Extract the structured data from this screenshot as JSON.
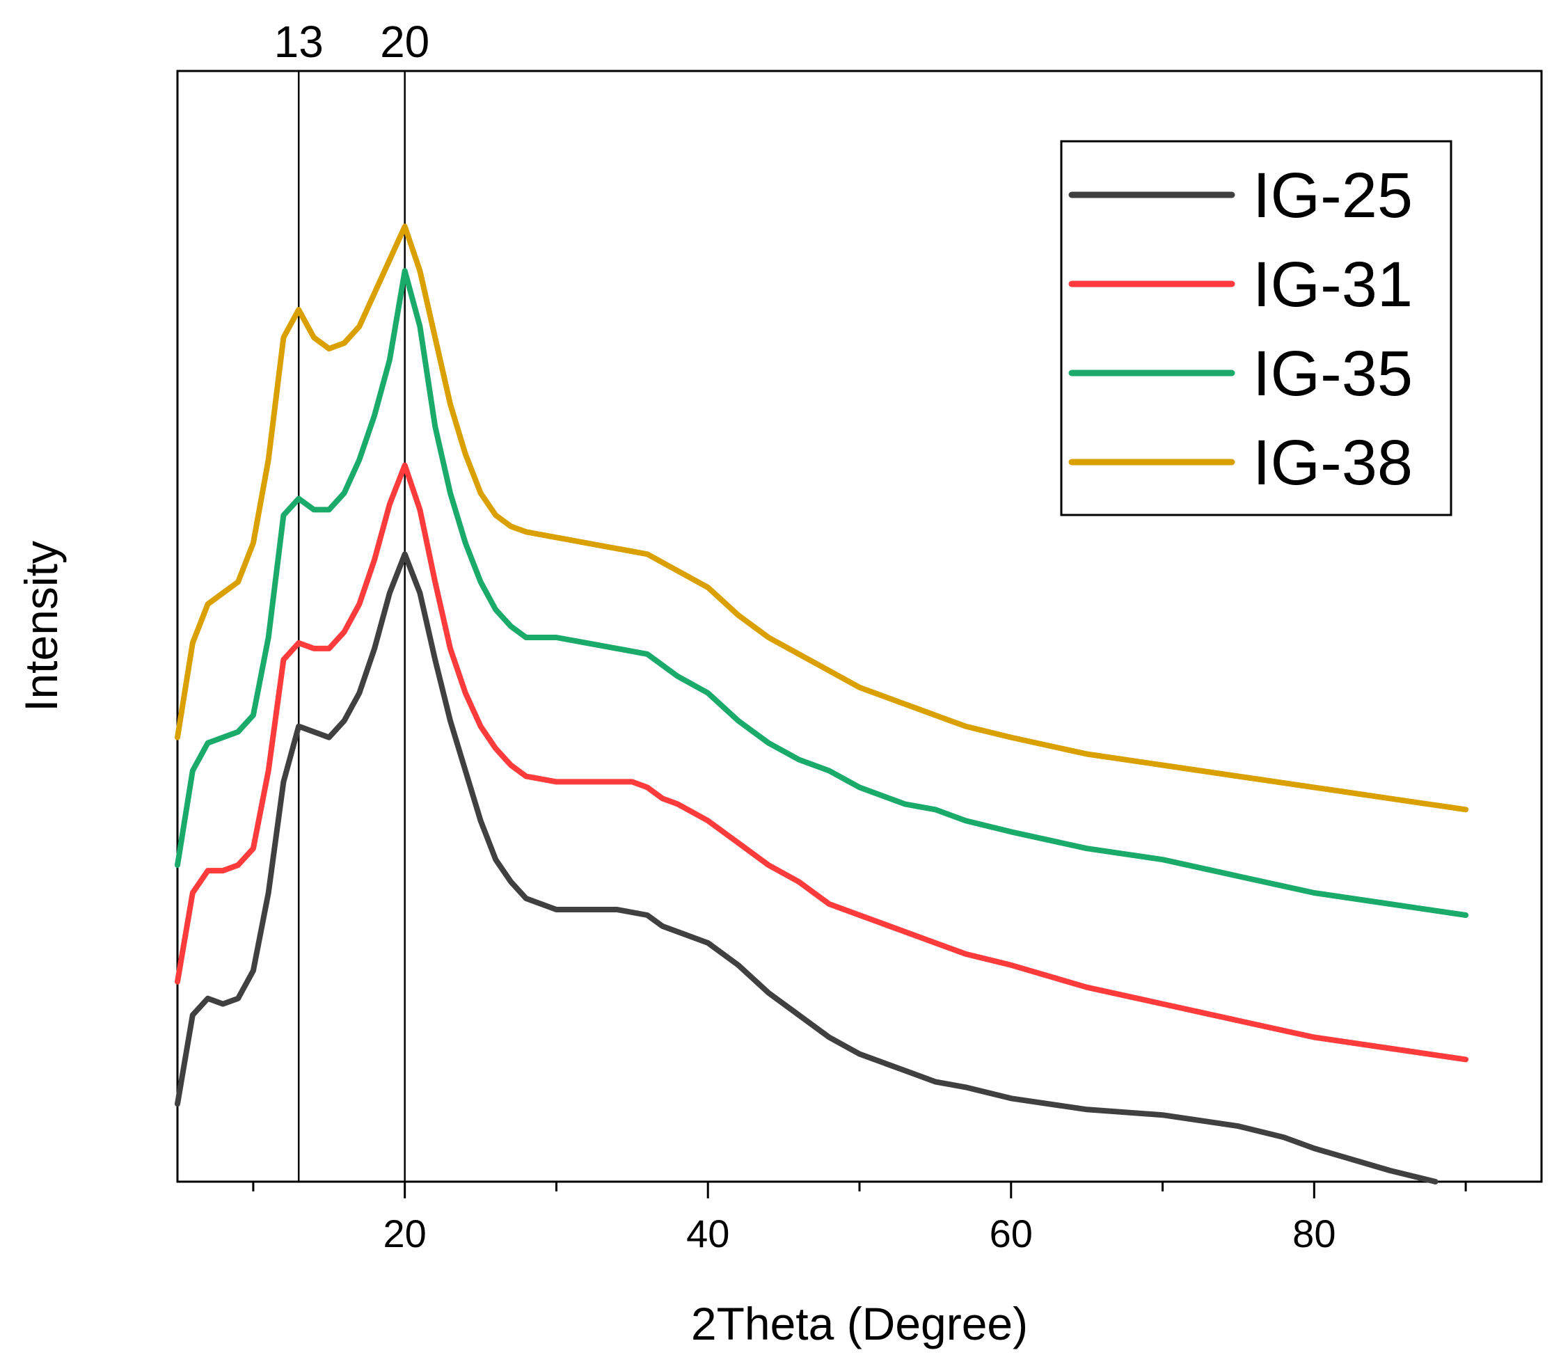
{
  "chart_data": {
    "type": "line",
    "title": "",
    "xlabel": "2Theta (Degree)",
    "ylabel": "Intensity",
    "xlim": [
      5,
      95
    ],
    "ylim": [
      0,
      100
    ],
    "x_ticks": [
      20,
      40,
      60,
      80
    ],
    "y_ticks_shown": false,
    "reference_lines": [
      {
        "x": 13,
        "label": "13"
      },
      {
        "x": 20,
        "label": "20"
      }
    ],
    "legend": {
      "placement": "top-right"
    },
    "series": [
      {
        "name": "IG-25",
        "color": "#404040",
        "points": [
          [
            5,
            7
          ],
          [
            6,
            15
          ],
          [
            7,
            16.5
          ],
          [
            8,
            16
          ],
          [
            9,
            16.5
          ],
          [
            10,
            19
          ],
          [
            11,
            26
          ],
          [
            12,
            36
          ],
          [
            13,
            41
          ],
          [
            14,
            40.5
          ],
          [
            15,
            40
          ],
          [
            16,
            41.5
          ],
          [
            17,
            44
          ],
          [
            18,
            48
          ],
          [
            19,
            53
          ],
          [
            20,
            56.5
          ],
          [
            21,
            53
          ],
          [
            22,
            47
          ],
          [
            23,
            41.5
          ],
          [
            24,
            37
          ],
          [
            25,
            32.5
          ],
          [
            26,
            29
          ],
          [
            27,
            27
          ],
          [
            28,
            25.5
          ],
          [
            30,
            24.5
          ],
          [
            32,
            24.5
          ],
          [
            34,
            24.5
          ],
          [
            36,
            24
          ],
          [
            37,
            23
          ],
          [
            38,
            22.5
          ],
          [
            40,
            21.5
          ],
          [
            42,
            19.5
          ],
          [
            44,
            17
          ],
          [
            46,
            15
          ],
          [
            48,
            13
          ],
          [
            50,
            11.5
          ],
          [
            53,
            10
          ],
          [
            55,
            9
          ],
          [
            57,
            8.5
          ],
          [
            60,
            7.5
          ],
          [
            65,
            6.5
          ],
          [
            70,
            6
          ],
          [
            75,
            5
          ],
          [
            78,
            4
          ],
          [
            80,
            3
          ],
          [
            85,
            1
          ],
          [
            88,
            0
          ]
        ]
      },
      {
        "name": "IG-31",
        "color": "#ff3b3b",
        "points": [
          [
            5,
            18
          ],
          [
            6,
            26
          ],
          [
            7,
            28
          ],
          [
            8,
            28
          ],
          [
            9,
            28.5
          ],
          [
            10,
            30
          ],
          [
            11,
            37
          ],
          [
            12,
            47
          ],
          [
            13,
            48.5
          ],
          [
            14,
            48
          ],
          [
            15,
            48
          ],
          [
            16,
            49.5
          ],
          [
            17,
            52
          ],
          [
            18,
            56
          ],
          [
            19,
            61
          ],
          [
            20,
            64.5
          ],
          [
            21,
            60.5
          ],
          [
            22,
            54
          ],
          [
            23,
            48
          ],
          [
            24,
            44
          ],
          [
            25,
            41
          ],
          [
            26,
            39
          ],
          [
            27,
            37.5
          ],
          [
            28,
            36.5
          ],
          [
            30,
            36
          ],
          [
            33,
            36
          ],
          [
            35,
            36
          ],
          [
            36,
            35.5
          ],
          [
            37,
            34.5
          ],
          [
            38,
            34
          ],
          [
            40,
            32.5
          ],
          [
            42,
            30.5
          ],
          [
            44,
            28.5
          ],
          [
            46,
            27
          ],
          [
            48,
            25
          ],
          [
            50,
            24
          ],
          [
            53,
            22.5
          ],
          [
            55,
            21.5
          ],
          [
            57,
            20.5
          ],
          [
            60,
            19.5
          ],
          [
            65,
            17.5
          ],
          [
            70,
            16
          ],
          [
            75,
            14.5
          ],
          [
            80,
            13
          ],
          [
            85,
            12
          ],
          [
            90,
            11
          ]
        ]
      },
      {
        "name": "IG-35",
        "color": "#1aaa6a",
        "points": [
          [
            5,
            28.5
          ],
          [
            6,
            37
          ],
          [
            7,
            39.5
          ],
          [
            8,
            40
          ],
          [
            9,
            40.5
          ],
          [
            10,
            42
          ],
          [
            11,
            49
          ],
          [
            12,
            60
          ],
          [
            13,
            61.5
          ],
          [
            14,
            60.5
          ],
          [
            15,
            60.5
          ],
          [
            16,
            62
          ],
          [
            17,
            65
          ],
          [
            18,
            69
          ],
          [
            19,
            74
          ],
          [
            20,
            82
          ],
          [
            21,
            77
          ],
          [
            22,
            68
          ],
          [
            23,
            62
          ],
          [
            24,
            57.5
          ],
          [
            25,
            54
          ],
          [
            26,
            51.5
          ],
          [
            27,
            50
          ],
          [
            28,
            49
          ],
          [
            30,
            49
          ],
          [
            32,
            48.5
          ],
          [
            34,
            48
          ],
          [
            36,
            47.5
          ],
          [
            38,
            45.5
          ],
          [
            40,
            44
          ],
          [
            42,
            41.5
          ],
          [
            44,
            39.5
          ],
          [
            46,
            38
          ],
          [
            48,
            37
          ],
          [
            50,
            35.5
          ],
          [
            53,
            34
          ],
          [
            55,
            33.5
          ],
          [
            57,
            32.5
          ],
          [
            60,
            31.5
          ],
          [
            65,
            30
          ],
          [
            70,
            29
          ],
          [
            75,
            27.5
          ],
          [
            80,
            26
          ],
          [
            85,
            25
          ],
          [
            90,
            24
          ]
        ]
      },
      {
        "name": "IG-38",
        "color": "#daa000",
        "points": [
          [
            5,
            40
          ],
          [
            6,
            48.5
          ],
          [
            7,
            52
          ],
          [
            8,
            53
          ],
          [
            9,
            54
          ],
          [
            10,
            57.5
          ],
          [
            11,
            65
          ],
          [
            12,
            76
          ],
          [
            13,
            78.5
          ],
          [
            14,
            76
          ],
          [
            15,
            75
          ],
          [
            16,
            75.5
          ],
          [
            17,
            77
          ],
          [
            18,
            80
          ],
          [
            19,
            83
          ],
          [
            20,
            86
          ],
          [
            21,
            82
          ],
          [
            22,
            76
          ],
          [
            23,
            70
          ],
          [
            24,
            65.5
          ],
          [
            25,
            62
          ],
          [
            26,
            60
          ],
          [
            27,
            59
          ],
          [
            28,
            58.5
          ],
          [
            30,
            58
          ],
          [
            32,
            57.5
          ],
          [
            34,
            57
          ],
          [
            36,
            56.5
          ],
          [
            38,
            55
          ],
          [
            40,
            53.5
          ],
          [
            42,
            51
          ],
          [
            44,
            49
          ],
          [
            46,
            47.5
          ],
          [
            48,
            46
          ],
          [
            50,
            44.5
          ],
          [
            53,
            43
          ],
          [
            55,
            42
          ],
          [
            57,
            41
          ],
          [
            60,
            40
          ],
          [
            65,
            38.5
          ],
          [
            70,
            37.5
          ],
          [
            75,
            36.5
          ],
          [
            80,
            35.5
          ],
          [
            85,
            34.5
          ],
          [
            90,
            33.5
          ]
        ]
      }
    ]
  }
}
